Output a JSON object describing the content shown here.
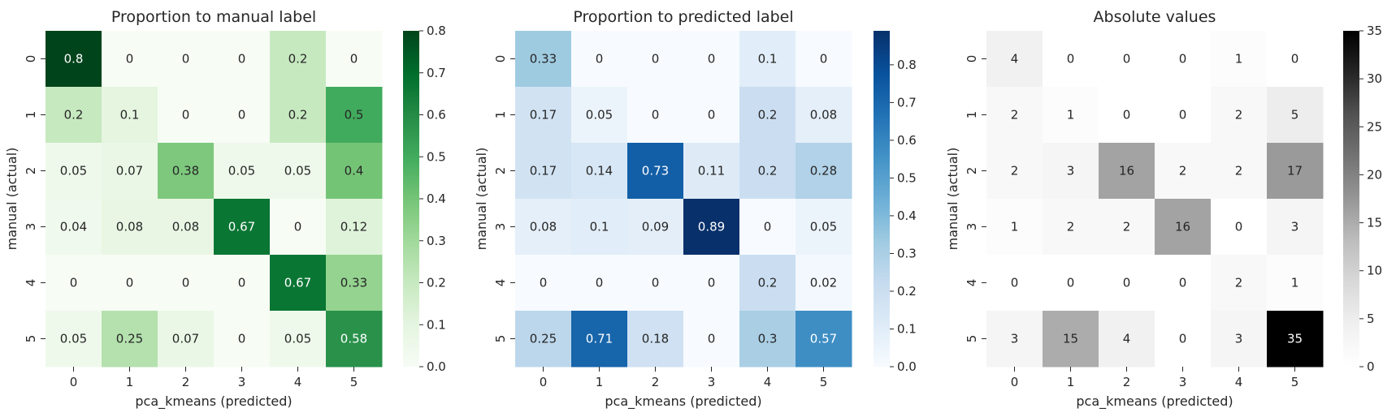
{
  "chart_data": [
    {
      "type": "heatmap",
      "title": "Proportion to manual label",
      "xlabel": "pca_kmeans (predicted)",
      "ylabel": "manual (actual)",
      "x_categories": [
        "0",
        "1",
        "2",
        "3",
        "4",
        "5"
      ],
      "y_categories": [
        "0",
        "1",
        "2",
        "3",
        "4",
        "5"
      ],
      "values": [
        [
          0.8,
          0,
          0,
          0,
          0.2,
          0
        ],
        [
          0.2,
          0.1,
          0,
          0,
          0.2,
          0.5
        ],
        [
          0.05,
          0.07,
          0.38,
          0.05,
          0.05,
          0.4
        ],
        [
          0.04,
          0.08,
          0.08,
          0.67,
          0,
          0.12
        ],
        [
          0,
          0,
          0,
          0,
          0.67,
          0.33
        ],
        [
          0.05,
          0.25,
          0.07,
          0,
          0.05,
          0.58
        ]
      ],
      "colormap": "Greens",
      "colormap_stops": [
        "#f7fcf5",
        "#e5f5e0",
        "#c7e9c0",
        "#a1d99b",
        "#74c476",
        "#41ab5d",
        "#238b45",
        "#006d2c",
        "#00441b"
      ],
      "color_range": [
        0,
        0.8
      ],
      "colorbar_ticks": [
        0.0,
        0.1,
        0.2,
        0.3,
        0.4,
        0.5,
        0.6,
        0.7,
        0.8
      ],
      "colorbar_tick_labels": [
        "0.0",
        "0.1",
        "0.2",
        "0.3",
        "0.4",
        "0.5",
        "0.6",
        "0.7",
        "0.8"
      ]
    },
    {
      "type": "heatmap",
      "title": "Proportion to predicted label",
      "xlabel": "pca_kmeans (predicted)",
      "ylabel": "manual (actual)",
      "x_categories": [
        "0",
        "1",
        "2",
        "3",
        "4",
        "5"
      ],
      "y_categories": [
        "0",
        "1",
        "2",
        "3",
        "4",
        "5"
      ],
      "values": [
        [
          0.33,
          0,
          0,
          0,
          0.1,
          0
        ],
        [
          0.17,
          0.05,
          0,
          0,
          0.2,
          0.08
        ],
        [
          0.17,
          0.14,
          0.73,
          0.11,
          0.2,
          0.28
        ],
        [
          0.08,
          0.1,
          0.09,
          0.89,
          0,
          0.05
        ],
        [
          0,
          0,
          0,
          0,
          0.2,
          0.02
        ],
        [
          0.25,
          0.71,
          0.18,
          0,
          0.3,
          0.57
        ]
      ],
      "colormap": "Blues",
      "colormap_stops": [
        "#f7fbff",
        "#deebf7",
        "#c6dbef",
        "#9ecae1",
        "#6baed6",
        "#4292c6",
        "#2171b5",
        "#08519c",
        "#08306b"
      ],
      "color_range": [
        0,
        0.89
      ],
      "colorbar_ticks": [
        0.0,
        0.1,
        0.2,
        0.3,
        0.4,
        0.5,
        0.6,
        0.7,
        0.8
      ],
      "colorbar_tick_labels": [
        "0.0",
        "0.1",
        "0.2",
        "0.3",
        "0.4",
        "0.5",
        "0.6",
        "0.7",
        "0.8"
      ]
    },
    {
      "type": "heatmap",
      "title": "Absolute values",
      "xlabel": "pca_kmeans (predicted)",
      "ylabel": "manual (actual)",
      "x_categories": [
        "0",
        "1",
        "2",
        "3",
        "4",
        "5"
      ],
      "y_categories": [
        "0",
        "1",
        "2",
        "3",
        "4",
        "5"
      ],
      "values": [
        [
          4,
          0,
          0,
          0,
          1,
          0
        ],
        [
          2,
          1,
          0,
          0,
          2,
          5
        ],
        [
          2,
          3,
          16,
          2,
          2,
          17
        ],
        [
          1,
          2,
          2,
          16,
          0,
          3
        ],
        [
          0,
          0,
          0,
          0,
          2,
          1
        ],
        [
          3,
          15,
          4,
          0,
          3,
          35
        ]
      ],
      "colormap": "Greys",
      "colormap_stops": [
        "#ffffff",
        "#f0f0f0",
        "#d9d9d9",
        "#bdbdbd",
        "#969696",
        "#737373",
        "#525252",
        "#252525",
        "#000000"
      ],
      "color_range": [
        0,
        35
      ],
      "colorbar_ticks": [
        0,
        5,
        10,
        15,
        20,
        25,
        30,
        35
      ],
      "colorbar_tick_labels": [
        "0",
        "5",
        "10",
        "15",
        "20",
        "25",
        "30",
        "35"
      ]
    }
  ]
}
